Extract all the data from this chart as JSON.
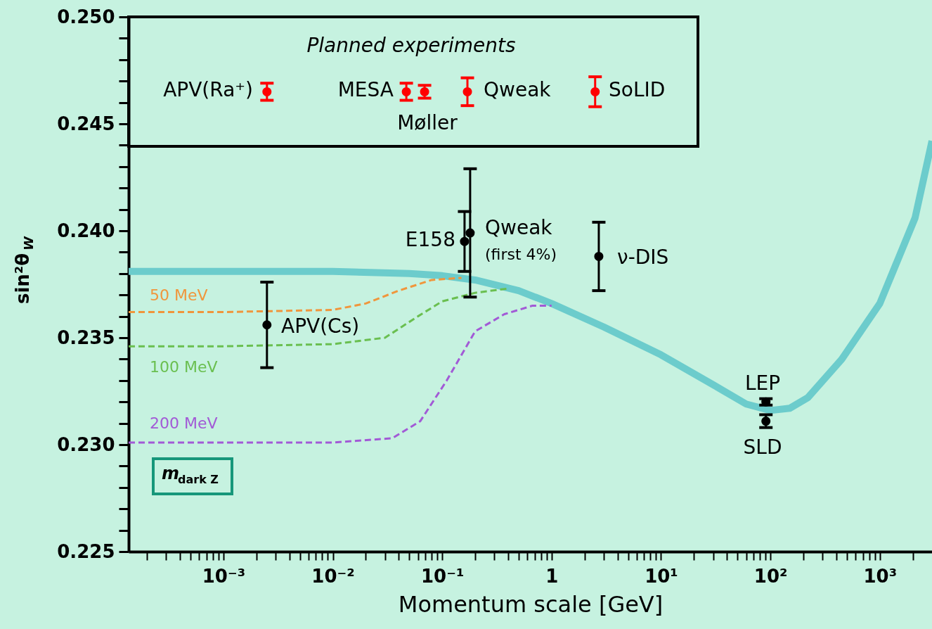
{
  "chart_data": {
    "type": "line",
    "xlabel": "Momentum scale [GeV]",
    "ylabel": "sin²θ$_{W}$",
    "log": "x",
    "grid": false,
    "xlim": [
      0.000136,
      3000
    ],
    "ylim": [
      0.225,
      0.25
    ],
    "xticks": [
      {
        "value": 0.0002,
        "label": null
      },
      {
        "value": 0.0003,
        "label": null
      },
      {
        "value": 0.0004,
        "label": null
      },
      {
        "value": 0.0005,
        "label": null
      },
      {
        "value": 0.0006,
        "label": null
      },
      {
        "value": 0.0007,
        "label": null
      },
      {
        "value": 0.0008,
        "label": null
      },
      {
        "value": 0.0009,
        "label": null
      },
      {
        "value": 0.001,
        "label": "10⁻³"
      },
      {
        "value": 0.002,
        "label": null
      },
      {
        "value": 0.003,
        "label": null
      },
      {
        "value": 0.004,
        "label": null
      },
      {
        "value": 0.005,
        "label": null
      },
      {
        "value": 0.006,
        "label": null
      },
      {
        "value": 0.007,
        "label": null
      },
      {
        "value": 0.008,
        "label": null
      },
      {
        "value": 0.009,
        "label": null
      },
      {
        "value": 0.01,
        "label": "10⁻²"
      },
      {
        "value": 0.02,
        "label": null
      },
      {
        "value": 0.03,
        "label": null
      },
      {
        "value": 0.04,
        "label": null
      },
      {
        "value": 0.05,
        "label": null
      },
      {
        "value": 0.06,
        "label": null
      },
      {
        "value": 0.07,
        "label": null
      },
      {
        "value": 0.08,
        "label": null
      },
      {
        "value": 0.09,
        "label": null
      },
      {
        "value": 0.1,
        "label": "10⁻¹"
      },
      {
        "value": 0.2,
        "label": null
      },
      {
        "value": 0.3,
        "label": null
      },
      {
        "value": 0.4,
        "label": null
      },
      {
        "value": 0.5,
        "label": null
      },
      {
        "value": 0.6,
        "label": null
      },
      {
        "value": 0.7,
        "label": null
      },
      {
        "value": 0.8,
        "label": null
      },
      {
        "value": 0.9,
        "label": null
      },
      {
        "value": 1,
        "label": "1"
      },
      {
        "value": 2,
        "label": null
      },
      {
        "value": 3,
        "label": null
      },
      {
        "value": 4,
        "label": null
      },
      {
        "value": 5,
        "label": null
      },
      {
        "value": 6,
        "label": null
      },
      {
        "value": 7,
        "label": null
      },
      {
        "value": 8,
        "label": null
      },
      {
        "value": 9,
        "label": null
      },
      {
        "value": 10,
        "label": "10¹"
      },
      {
        "value": 20,
        "label": null
      },
      {
        "value": 30,
        "label": null
      },
      {
        "value": 40,
        "label": null
      },
      {
        "value": 50,
        "label": null
      },
      {
        "value": 60,
        "label": null
      },
      {
        "value": 70,
        "label": null
      },
      {
        "value": 80,
        "label": null
      },
      {
        "value": 90,
        "label": null
      },
      {
        "value": 100,
        "label": "10²"
      },
      {
        "value": 200,
        "label": null
      },
      {
        "value": 300,
        "label": null
      },
      {
        "value": 400,
        "label": null
      },
      {
        "value": 500,
        "label": null
      },
      {
        "value": 600,
        "label": null
      },
      {
        "value": 700,
        "label": null
      },
      {
        "value": 800,
        "label": null
      },
      {
        "value": 900,
        "label": null
      },
      {
        "value": 1000,
        "label": "10³"
      },
      {
        "value": 2000,
        "label": null
      }
    ],
    "yticks": [
      {
        "value": 0.225,
        "label": "0.225"
      },
      {
        "value": 0.226,
        "label": null
      },
      {
        "value": 0.227,
        "label": null
      },
      {
        "value": 0.228,
        "label": null
      },
      {
        "value": 0.229,
        "label": null
      },
      {
        "value": 0.23,
        "label": "0.230"
      },
      {
        "value": 0.231,
        "label": null
      },
      {
        "value": 0.232,
        "label": null
      },
      {
        "value": 0.233,
        "label": null
      },
      {
        "value": 0.234,
        "label": null
      },
      {
        "value": 0.235,
        "label": "0.235"
      },
      {
        "value": 0.236,
        "label": null
      },
      {
        "value": 0.237,
        "label": null
      },
      {
        "value": 0.238,
        "label": null
      },
      {
        "value": 0.239,
        "label": null
      },
      {
        "value": 0.24,
        "label": "0.240"
      },
      {
        "value": 0.241,
        "label": null
      },
      {
        "value": 0.242,
        "label": null
      },
      {
        "value": 0.243,
        "label": null
      },
      {
        "value": 0.244,
        "label": null
      },
      {
        "value": 0.245,
        "label": "0.245"
      },
      {
        "value": 0.246,
        "label": null
      },
      {
        "value": 0.247,
        "label": null
      },
      {
        "value": 0.248,
        "label": null
      },
      {
        "value": 0.249,
        "label": null
      },
      {
        "value": 0.25,
        "label": "0.250"
      }
    ],
    "series": [
      {
        "line_style": "solid",
        "color": "#6ccccc",
        "x": [
          0.000136,
          0.001,
          0.01,
          0.05,
          0.1,
          0.2,
          0.5,
          1,
          3,
          10,
          30,
          60,
          100,
          150,
          220,
          450,
          1000,
          2100,
          3000
        ],
        "values": [
          0.2381,
          0.2381,
          0.2381,
          0.238,
          0.2379,
          0.2377,
          0.2372,
          0.2366,
          0.2355,
          0.2342,
          0.2328,
          0.2319,
          0.2316,
          0.2317,
          0.2322,
          0.234,
          0.2366,
          0.2406,
          0.2442
        ]
      },
      {
        "name": "50 MeV",
        "line_style": "dashed",
        "color": "#f0963c",
        "x": [
          0.000136,
          0.001,
          0.01,
          0.02,
          0.04,
          0.08,
          0.15
        ],
        "values": [
          0.2362,
          0.2362,
          0.2363,
          0.2366,
          0.2372,
          0.2377,
          0.2378
        ]
      },
      {
        "name": "100 MeV",
        "line_style": "dashed",
        "color": "#6abf50",
        "x": [
          0.000136,
          0.001,
          0.01,
          0.03,
          0.06,
          0.1,
          0.2,
          0.4
        ],
        "values": [
          0.2346,
          0.2346,
          0.2347,
          0.235,
          0.236,
          0.2367,
          0.2371,
          0.2373
        ]
      },
      {
        "name": "200 MeV",
        "line_style": "dashed",
        "color": "#a25ad6",
        "x": [
          0.000136,
          0.001,
          0.01,
          0.035,
          0.063,
          0.11,
          0.2,
          0.37,
          0.67,
          1
        ],
        "values": [
          0.2301,
          0.2301,
          0.2301,
          0.2303,
          0.2311,
          0.233,
          0.2353,
          0.2361,
          0.2365,
          0.2365
        ]
      },
      {
        "type": "scatter",
        "marker": "circle",
        "color": "#000000",
        "x": [
          0.0025,
          0.16,
          0.18,
          2.7,
          91,
          91
        ],
        "values": [
          0.2356,
          0.2395,
          0.2399,
          0.2388,
          0.232,
          0.2311
        ],
        "errors": [
          0.002,
          0.0014,
          0.003,
          0.0016,
          0.00015,
          0.0003
        ]
      },
      {
        "type": "scatter",
        "marker": "circle",
        "color": "#ff0000",
        "x": [
          0.0025,
          0.047,
          0.069,
          0.17,
          2.5
        ],
        "values": [
          0.2465,
          0.2465,
          0.2465,
          0.2465,
          0.2465
        ],
        "errors": [
          0.0004,
          0.0004,
          0.0003,
          0.00065,
          0.0007
        ]
      }
    ],
    "annotations": [
      "Planned experiments",
      "m$_{dark Z}$",
      "APV(Cs)",
      "E158",
      "Qweak",
      "(first 4%)",
      "ν-DIS",
      "LEP",
      "SLD",
      "APV(Ra⁺)",
      "MESA",
      "Møller",
      "Qweak",
      "SoLID"
    ]
  }
}
